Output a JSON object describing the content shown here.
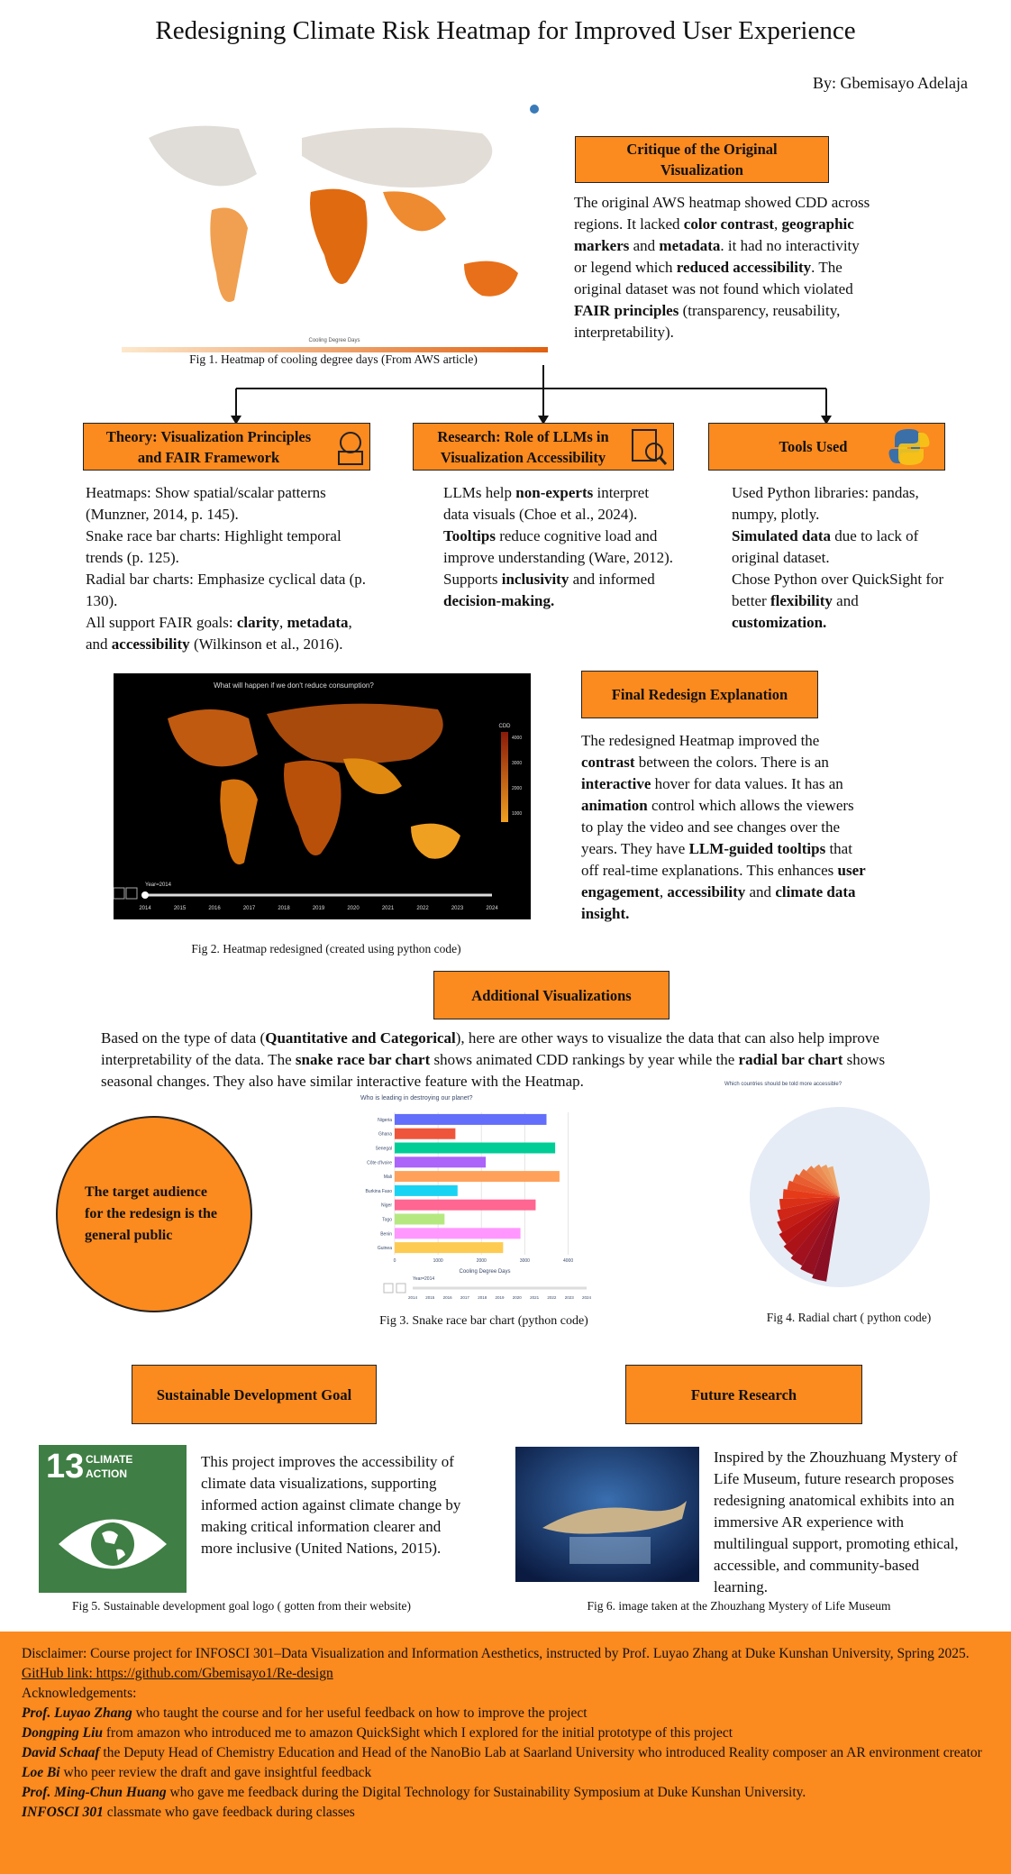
{
  "title": "Redesigning Climate Risk Heatmap for Improved User Experience",
  "author": "By: Gbemisayo Adelaja",
  "fig1": {
    "legend_label": "Cooling Degree Days",
    "caption": "Fig 1. Heatmap of cooling degree days (From AWS article)"
  },
  "critique": {
    "heading": "Critique of the Original Visualization",
    "body": [
      "The original AWS heatmap showed CDD across regions. It lacked ",
      {
        "b": "color contrast"
      },
      ", ",
      {
        "b": "geographic markers"
      },
      " and ",
      {
        "b": "metadata"
      },
      ". it had no interactivity or legend which ",
      {
        "b": "reduced accessibility"
      },
      ". The original dataset was not found which violated ",
      {
        "b": "FAIR principles"
      },
      " (transparency, reusability, interpretability)."
    ]
  },
  "columns": [
    {
      "heading": "Theory: Visualization Principles and FAIR Framework",
      "paragraphs": [
        [
          "Heatmaps: Show spatial/scalar patterns (Munzner, 2014, p. 145)."
        ],
        [
          "Snake race bar charts: Highlight temporal trends (p. 125)."
        ],
        [
          "Radial bar charts: Emphasize cyclical data (p. 130)."
        ],
        [
          "All support FAIR goals: ",
          {
            "b": "clarity"
          },
          ", ",
          {
            "b": "metadata"
          },
          ", and ",
          {
            "b": "accessibility"
          },
          " (Wilkinson et al., 2016)."
        ]
      ]
    },
    {
      "heading": "Research: Role of LLMs in Visualization Accessibility",
      "paragraphs": [
        [
          "LLMs help ",
          {
            "b": "non-experts"
          },
          " interpret data visuals (Choe et al., 2024)."
        ],
        [
          {
            "b": "Tooltips"
          },
          " reduce cognitive load and improve understanding (Ware, 2012)."
        ],
        [
          "Supports ",
          {
            "b": "inclusivity"
          },
          " and informed ",
          {
            "b": "decision-making."
          }
        ]
      ]
    },
    {
      "heading": "Tools Used",
      "paragraphs": [
        [
          "Used Python libraries: pandas, numpy, plotly."
        ],
        [
          {
            "b": "Simulated data"
          },
          " due to lack of original dataset."
        ],
        [
          "Chose Python over QuickSight for better ",
          {
            "b": "flexibility"
          },
          " and ",
          {
            "b": "customization."
          }
        ]
      ]
    }
  ],
  "fig2": {
    "title": "What will happen if we don't reduce consumption?",
    "legend_title": "CDD",
    "legend_ticks": [
      "4000",
      "3000",
      "2000",
      "1000"
    ],
    "slider_label": "Year=2014",
    "years": [
      "2014",
      "2015",
      "2016",
      "2017",
      "2018",
      "2019",
      "2020",
      "2021",
      "2022",
      "2023",
      "2024"
    ],
    "caption": "Fig 2. Heatmap redesigned  (created using python code)"
  },
  "final": {
    "heading": "Final Redesign Explanation",
    "body": [
      "The redesigned Heatmap improved the ",
      {
        "b": "contrast"
      },
      " between the colors. There is an ",
      {
        "b": "interactive"
      },
      " hover for data values. It has an ",
      {
        "b": "animation"
      },
      " control which allows the viewers to play the video and see changes over the years. They have ",
      {
        "b": "LLM-guided tooltips"
      },
      " that off real-time explanations. This enhances ",
      {
        "b": "user engagement"
      },
      ", ",
      {
        "b": "accessibility"
      },
      " and ",
      {
        "b": "climate data insight."
      }
    ]
  },
  "additional": {
    "heading": "Additional Visualizations",
    "body": [
      "Based on the type of data (",
      {
        "b": "Quantitative and Categorical"
      },
      "), here are other ways to visualize the data that can also help improve interpretability of the data. The ",
      {
        "b": "snake race bar chart"
      },
      " shows animated CDD rankings by year while the ",
      {
        "b": "radial bar chart"
      },
      " shows seasonal changes. They also have similar interactive feature with the Heatmap."
    ]
  },
  "audience": "The target audience for the redesign is the general public",
  "fig3": {
    "title": "Who is leading in destroying our planet?",
    "x_label": "Cooling Degree Days",
    "categories": [
      "Nigeria",
      "Ghana",
      "Senegal",
      "Côte d'Ivoire",
      "Mali",
      "Burkina Faso",
      "Niger",
      "Togo",
      "Benin",
      "Guinea"
    ],
    "values": [
      3500,
      1400,
      3700,
      2100,
      3800,
      1450,
      3250,
      1150,
      2900,
      2500
    ],
    "colors": [
      "#636efa",
      "#ef553b",
      "#00cc96",
      "#ab63fa",
      "#ffa15a",
      "#19d3f3",
      "#ff6692",
      "#b6e880",
      "#ff97ff",
      "#fecb52"
    ],
    "xlim": [
      0,
      4300
    ],
    "xticks": [
      0,
      1000,
      2000,
      3000,
      4000
    ],
    "slider_label": "Year=2014",
    "years": [
      "2014",
      "2015",
      "2016",
      "2017",
      "2018",
      "2019",
      "2020",
      "2021",
      "2022",
      "2023",
      "2024"
    ],
    "caption": "Fig 3. Snake race bar chart (python code)"
  },
  "fig4": {
    "title": "Which countries should be told more accessible?",
    "caption": "Fig 4. Radial chart ( python code)"
  },
  "sdg": {
    "heading": "Sustainable Development Goal",
    "logo_number": "13",
    "logo_label": [
      "CLIMATE",
      "ACTION"
    ],
    "body": [
      "This project improves the accessibility of climate data visualizations, supporting informed action against climate change by making critical information clearer and more inclusive (United Nations, 2015)."
    ],
    "caption": "Fig 5. Sustainable development goal logo ( gotten from their website)"
  },
  "future": {
    "heading": "Future Research",
    "body": [
      "Inspired by the Zhouzhuang Mystery of Life Museum, future research proposes redesigning anatomical exhibits into an immersive AR experience with multilingual support, promoting ethical, accessible, and community-based learning."
    ],
    "caption": "Fig 6. image taken at the Zhouzhang Mystery of Life Museum"
  },
  "footer": [
    [
      "Disclaimer: Course project for INFOSCI 301–Data Visualization and Information Aesthetics, instructed by Prof. Luyao Zhang at Duke Kunshan University, Spring 2025."
    ],
    [
      {
        "u": "GitHub link"
      },
      {
        "u": ": https://github.com/Gbemisayo1/Re-design"
      }
    ],
    [
      "Acknowledgements:"
    ],
    [
      {
        "bi": "Prof. Luyao Zhang"
      },
      " who taught the course and for her useful feedback on how to improve the project"
    ],
    [
      {
        "bi": "Dongping Liu"
      },
      " from amazon who introduced me to amazon QuickSight which I explored for the initial prototype of this project"
    ],
    [
      {
        "bi": "David Schaaf"
      },
      " the Deputy Head of Chemistry Education and Head of the NanoBio Lab at Saarland University who introduced Reality composer an AR environment creator"
    ],
    [
      {
        "bi": "Loe Bi"
      },
      " who peer review the draft and gave insightful feedback"
    ],
    [
      {
        "bi": "Prof. Ming-Chun Huang"
      },
      " who gave me feedback during the Digital Technology for Sustainability Symposium at Duke Kunshan University."
    ],
    [
      {
        "bi": "INFOSCI 301"
      },
      " classmate who gave feedback during classes"
    ]
  ]
}
